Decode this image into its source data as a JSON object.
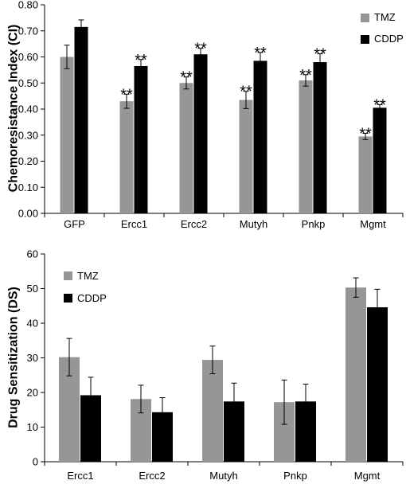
{
  "chart_data": [
    {
      "type": "bar",
      "ylabel": "Chemoresistance Index (CI)",
      "xlabel": "",
      "ylim": [
        0,
        0.8
      ],
      "yticks": [
        "0.00",
        "0.10",
        "0.20",
        "0.30",
        "0.40",
        "0.50",
        "0.60",
        "0.70",
        "0.80"
      ],
      "categories": [
        "GFP",
        "Ercc1",
        "Ercc2",
        "Mutyh",
        "Pnkp",
        "Mgmt"
      ],
      "series": [
        {
          "name": "TMZ",
          "color": "#969696",
          "values": [
            0.6,
            0.43,
            0.5,
            0.435,
            0.51,
            0.295
          ],
          "errors": [
            0.045,
            0.027,
            0.023,
            0.033,
            0.022,
            0.012
          ],
          "annotations": [
            "",
            "**",
            "**",
            "**",
            "**",
            "**"
          ]
        },
        {
          "name": "CDDP",
          "color": "#000000",
          "values": [
            0.715,
            0.565,
            0.61,
            0.585,
            0.58,
            0.405
          ],
          "errors": [
            0.027,
            0.025,
            0.023,
            0.032,
            0.032,
            0.012
          ],
          "annotations": [
            "",
            "**",
            "**",
            "**",
            "**",
            "**"
          ]
        }
      ],
      "grid": false,
      "legend": "top-right"
    },
    {
      "type": "bar",
      "ylabel": "Drug Sensitization (DS)",
      "xlabel": "",
      "ylim": [
        0,
        60
      ],
      "yticks": [
        "0",
        "10",
        "20",
        "30",
        "40",
        "50",
        "60"
      ],
      "categories": [
        "Ercc1",
        "Ercc2",
        "Mutyh",
        "Pnkp",
        "Mgmt"
      ],
      "series": [
        {
          "name": "TMZ",
          "color": "#969696",
          "values": [
            30.2,
            18.1,
            29.4,
            17.2,
            50.3
          ],
          "errors": [
            5.4,
            4.0,
            4.0,
            6.4,
            2.8
          ],
          "annotations": [
            "",
            "",
            "",
            "",
            ""
          ]
        },
        {
          "name": "CDDP",
          "color": "#000000",
          "values": [
            19.2,
            14.3,
            17.4,
            17.4,
            44.6
          ],
          "errors": [
            5.2,
            4.2,
            5.3,
            5.0,
            5.2
          ],
          "annotations": [
            "",
            "",
            "",
            "",
            ""
          ]
        }
      ],
      "grid": false,
      "legend": "top-left"
    }
  ]
}
